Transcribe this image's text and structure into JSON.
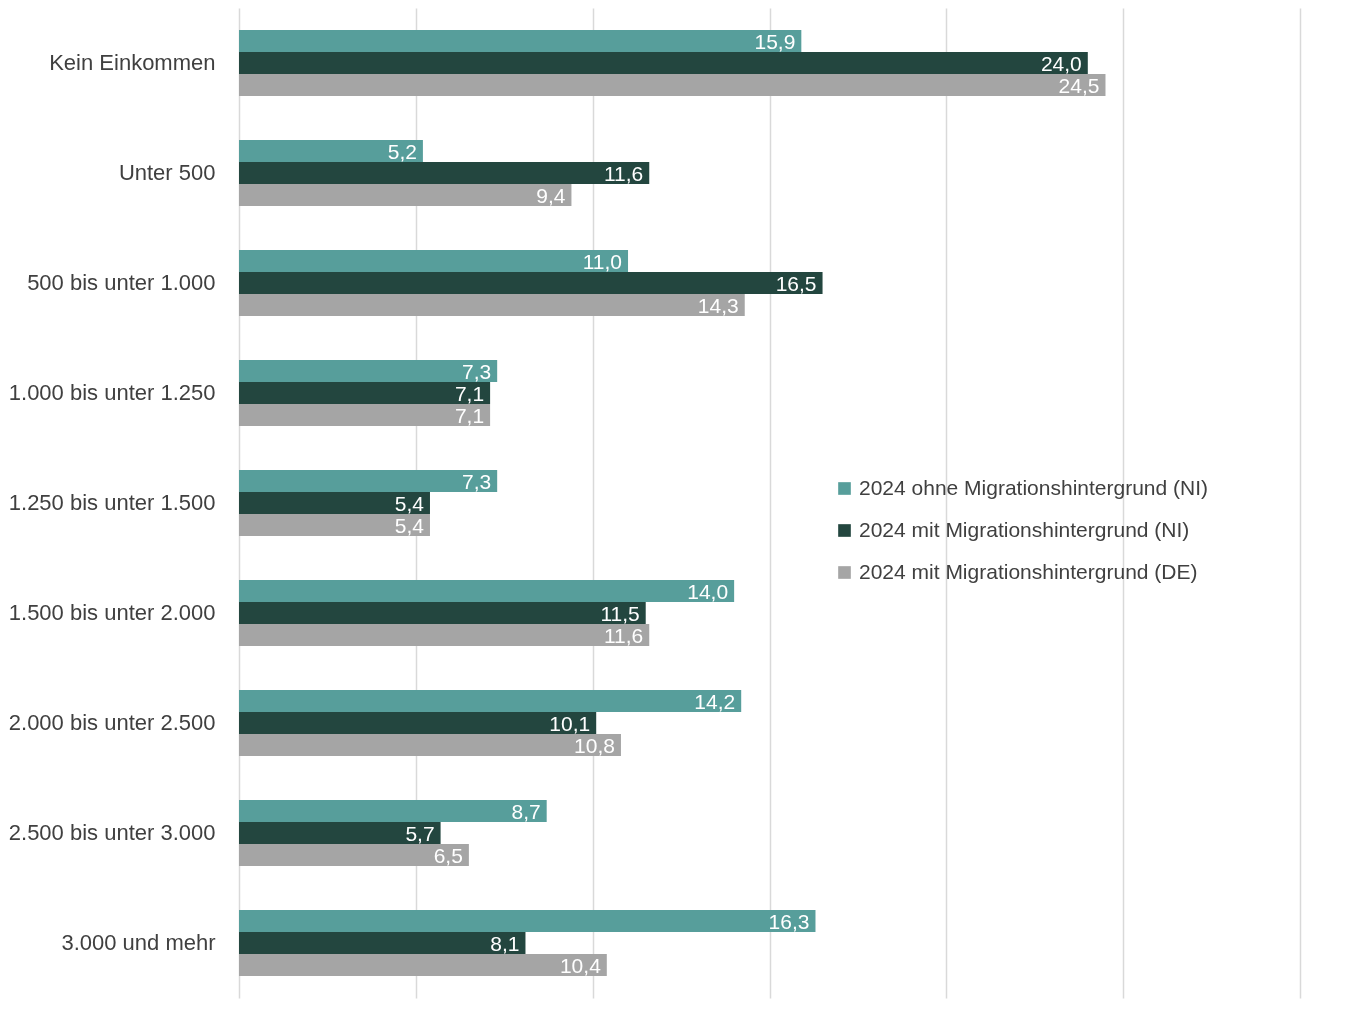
{
  "chart_data": {
    "type": "bar",
    "orientation": "horizontal",
    "categories": [
      "Kein Einkommen",
      "Unter 500",
      "500 bis unter 1.000",
      "1.000 bis unter 1.250",
      "1.250 bis unter 1.500",
      "1.500 bis unter 2.000",
      "2.000 bis unter 2.500",
      "2.500 bis unter 3.000",
      "3.000 und mehr"
    ],
    "series": [
      {
        "name": "2024 ohne Migrationshintergrund (NI)",
        "color": "#579e9b",
        "values": [
          15.9,
          5.2,
          11.0,
          7.3,
          7.3,
          14.0,
          14.2,
          8.7,
          16.3
        ],
        "value_labels": [
          "15,9",
          "5,2",
          "11,0",
          "7,3",
          "7,3",
          "14,0",
          "14,2",
          "8,7",
          "16,3"
        ]
      },
      {
        "name": "2024 mit Migrationshintergrund (NI)",
        "color": "#23463f",
        "values": [
          24.0,
          11.6,
          16.5,
          7.1,
          5.4,
          11.5,
          10.1,
          5.7,
          8.1
        ],
        "value_labels": [
          "24,0",
          "11,6",
          "16,5",
          "7,1",
          "5,4",
          "11,5",
          "10,1",
          "5,7",
          "8,1"
        ]
      },
      {
        "name": "2024 mit Migrationshintergrund (DE)",
        "color": "#a5a5a5",
        "values": [
          24.5,
          9.4,
          14.3,
          7.1,
          5.4,
          11.6,
          10.8,
          6.5,
          10.4
        ],
        "value_labels": [
          "24,5",
          "9,4",
          "14,3",
          "7,1",
          "5,4",
          "11,6",
          "10,8",
          "6,5",
          "10,4"
        ]
      }
    ],
    "xlim": [
      0,
      30
    ],
    "xticks": [
      {
        "value": 0,
        "label": null
      },
      {
        "value": 5,
        "label": null
      },
      {
        "value": 10,
        "label": null
      },
      {
        "value": 15,
        "label": null
      },
      {
        "value": 20,
        "label": null
      },
      {
        "value": 25,
        "label": null
      },
      {
        "value": 30,
        "label": null
      }
    ],
    "tick_labels": "y",
    "grid": "x",
    "legend": "right"
  }
}
